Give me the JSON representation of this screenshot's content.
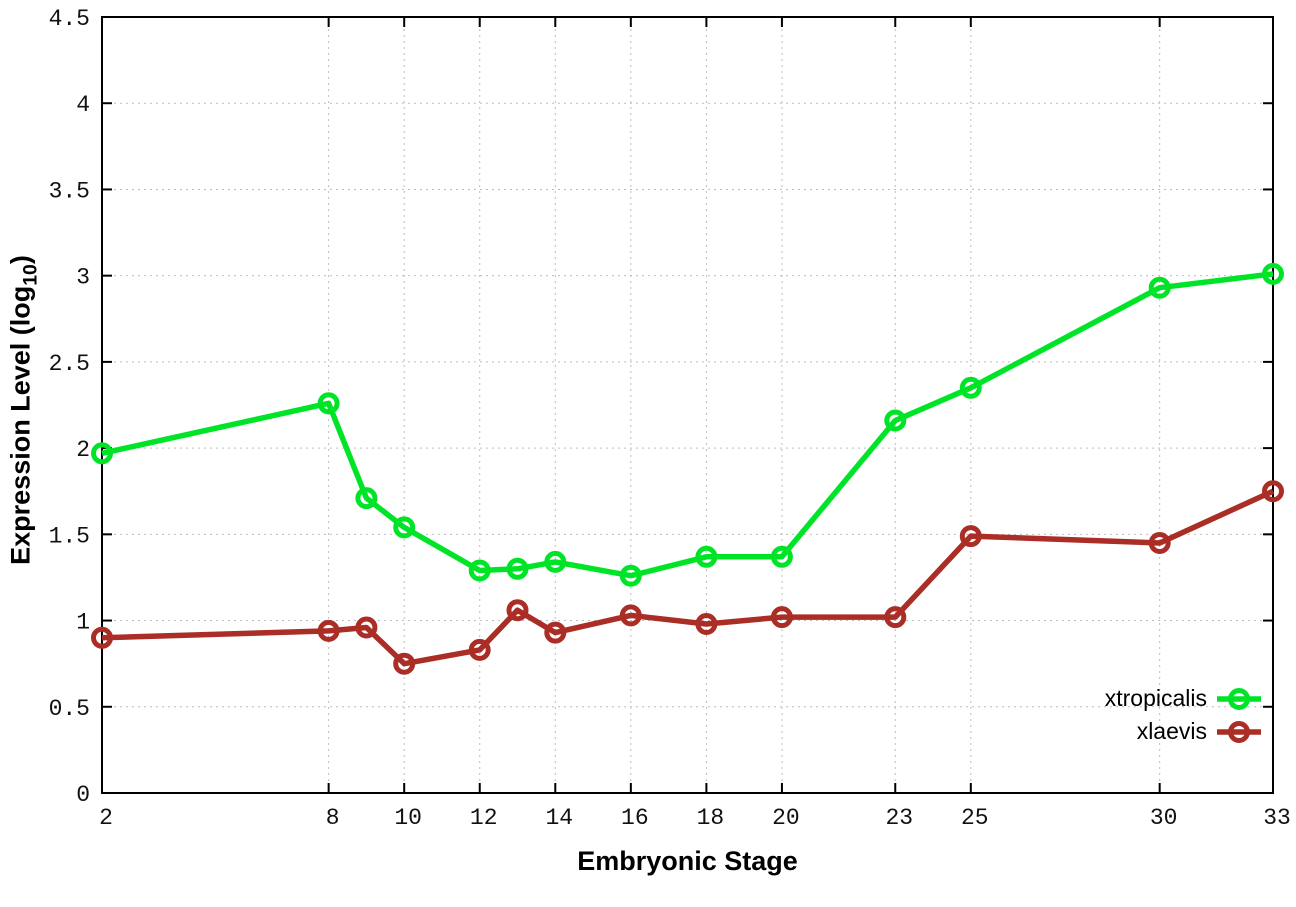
{
  "chart_data": {
    "type": "line",
    "title": "",
    "xlabel": "Embryonic Stage",
    "ylabel": "Expression Level (log10)",
    "ylabel_parts": {
      "prefix": "Expression Level (log",
      "sub": "10",
      "suffix": ")"
    },
    "x": [
      2,
      8,
      9,
      10,
      12,
      13,
      14,
      16,
      18,
      20,
      23,
      25,
      30,
      33
    ],
    "series": [
      {
        "name": "xtropicalis",
        "color": "#00e428",
        "values": [
          1.97,
          2.26,
          1.71,
          1.54,
          1.29,
          1.3,
          1.34,
          1.26,
          1.37,
          1.37,
          2.16,
          2.35,
          2.93,
          3.01
        ]
      },
      {
        "name": "xlaevis",
        "color": "#aa2d26",
        "values": [
          0.9,
          0.94,
          0.96,
          0.75,
          0.83,
          1.06,
          0.93,
          1.03,
          0.98,
          1.02,
          1.02,
          1.49,
          1.45,
          1.75
        ]
      }
    ],
    "xlim": [
      2,
      33
    ],
    "ylim": [
      0,
      4.5
    ],
    "xticks": {
      "values": [
        2,
        8,
        10,
        12,
        14,
        16,
        18,
        20,
        23,
        25,
        30,
        33
      ],
      "labels": [
        "2",
        "8",
        "10",
        "12",
        "14",
        "16",
        "18",
        "20",
        "23",
        "25",
        "30",
        "33"
      ]
    },
    "yticks": {
      "values": [
        0,
        0.5,
        1,
        1.5,
        2,
        2.5,
        3,
        3.5,
        4,
        4.5
      ],
      "labels": [
        "0",
        "0.5",
        "1",
        "1.5",
        "2",
        "2.5",
        "3",
        "3.5",
        "4",
        "4.5"
      ]
    },
    "grid": true,
    "legend_position": "bottom-right",
    "colors": {
      "border": "#000000",
      "grid": "#bdbdbd",
      "tick_text": "#111111"
    }
  }
}
